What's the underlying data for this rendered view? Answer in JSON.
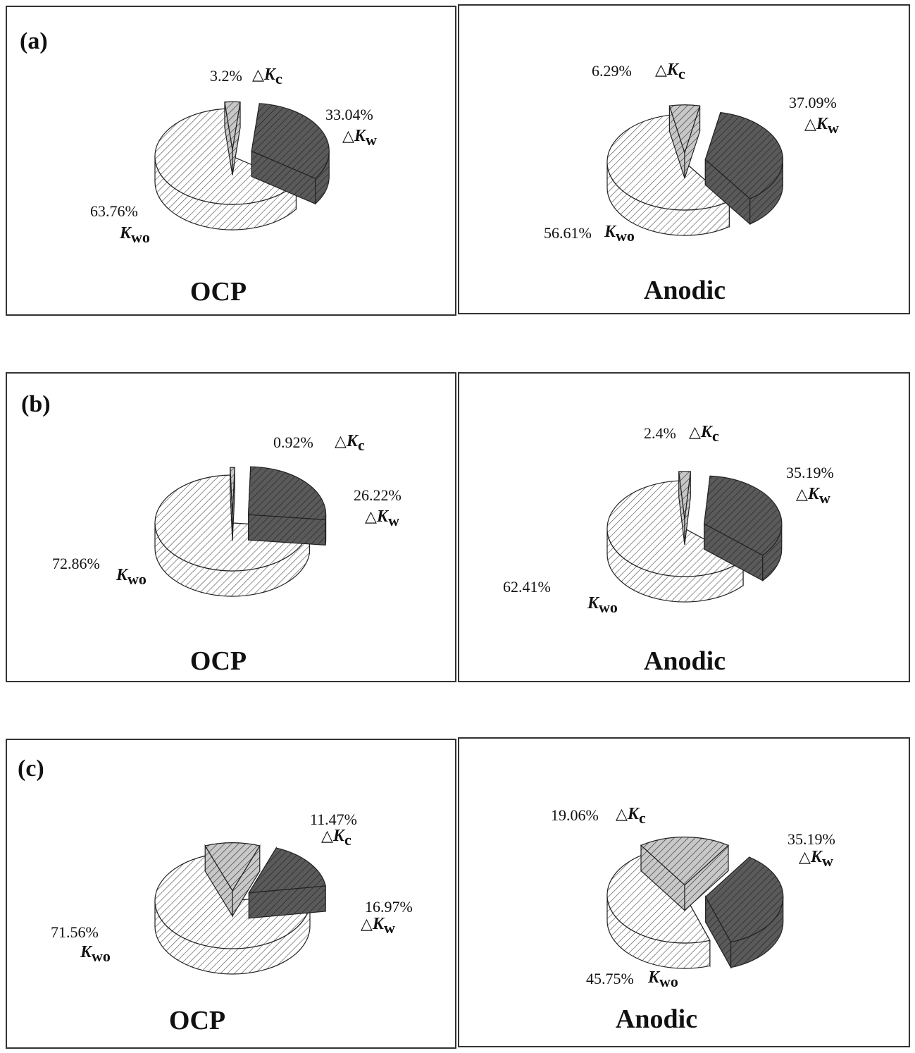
{
  "symbols": {
    "delta": "△",
    "k": "K",
    "sub_c": "c",
    "sub_w": "w",
    "sub_wo": "wo"
  },
  "chart_data": [
    {
      "type": "pie",
      "panel_label": "(a)",
      "title": "OCP",
      "slices": [
        {
          "name": "ΔKc",
          "value": 3.2,
          "text": "3.2%"
        },
        {
          "name": "ΔKw",
          "value": 33.04,
          "text": "33.04%"
        },
        {
          "name": "Kwo",
          "value": 63.76,
          "text": "63.76%"
        }
      ]
    },
    {
      "type": "pie",
      "panel_label": "",
      "title": "Anodic",
      "slices": [
        {
          "name": "ΔKc",
          "value": 6.29,
          "text": "6.29%"
        },
        {
          "name": "ΔKw",
          "value": 37.09,
          "text": "37.09%"
        },
        {
          "name": "Kwo",
          "value": 56.61,
          "text": "56.61%"
        }
      ]
    },
    {
      "type": "pie",
      "panel_label": "(b)",
      "title": "OCP",
      "slices": [
        {
          "name": "ΔKc",
          "value": 0.92,
          "text": "0.92%"
        },
        {
          "name": "ΔKw",
          "value": 26.22,
          "text": "26.22%"
        },
        {
          "name": "Kwo",
          "value": 72.86,
          "text": "72.86%"
        }
      ]
    },
    {
      "type": "pie",
      "panel_label": "",
      "title": "Anodic",
      "slices": [
        {
          "name": "ΔKc",
          "value": 2.4,
          "text": "2.4%"
        },
        {
          "name": "ΔKw",
          "value": 35.19,
          "text": "35.19%"
        },
        {
          "name": "Kwo",
          "value": 62.41,
          "text": "62.41%"
        }
      ]
    },
    {
      "type": "pie",
      "panel_label": "(c)",
      "title": "OCP",
      "slices": [
        {
          "name": "ΔKc",
          "value": 11.47,
          "text": "11.47%"
        },
        {
          "name": "ΔKw",
          "value": 16.97,
          "text": "16.97%"
        },
        {
          "name": "Kwo",
          "value": 71.56,
          "text": "71.56%"
        }
      ]
    },
    {
      "type": "pie",
      "panel_label": "",
      "title": "Anodic",
      "slices": [
        {
          "name": "ΔKc",
          "value": 19.06,
          "text": "19.06%"
        },
        {
          "name": "ΔKw",
          "value": 35.19,
          "text": "35.19%"
        },
        {
          "name": "Kwo",
          "value": 45.75,
          "text": "45.75%"
        }
      ]
    }
  ],
  "colors": {
    "kc": "#aaaaaa",
    "kw": "#555555",
    "kwo": "#f4f4f4",
    "stroke": "#222222",
    "border": "#333333"
  }
}
